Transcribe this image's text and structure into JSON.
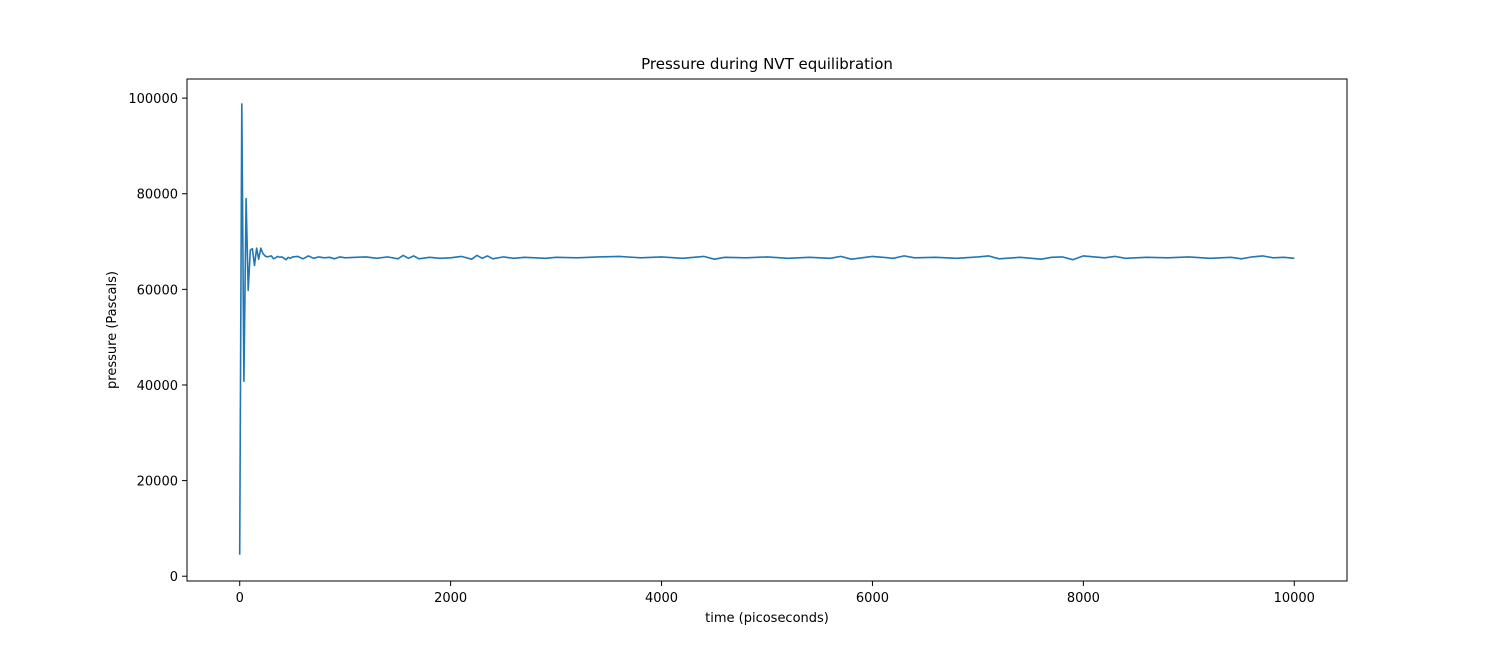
{
  "chart_data": {
    "type": "line",
    "title": "Pressure during NVT equilibration",
    "xlabel": "time (picoseconds)",
    "ylabel": "pressure (Pascals)",
    "xlim": [
      -500,
      10500
    ],
    "ylim": [
      -1000,
      104000
    ],
    "xticks": [
      0,
      2000,
      4000,
      6000,
      8000,
      10000
    ],
    "yticks": [
      0,
      20000,
      40000,
      60000,
      80000,
      100000
    ],
    "grid": false,
    "legend": "none",
    "line_color": "#1f77b4",
    "series": [
      {
        "x": [
          0,
          20,
          40,
          60,
          80,
          100,
          120,
          140,
          160,
          180,
          200,
          220,
          240,
          260,
          280,
          300,
          320,
          340,
          360,
          380,
          400,
          420,
          440,
          460,
          480,
          500,
          550,
          600,
          650,
          700,
          750,
          800,
          850,
          900,
          950,
          1000,
          1100,
          1200,
          1300,
          1400,
          1500,
          1550,
          1600,
          1650,
          1700,
          1800,
          1900,
          2000,
          2100,
          2200,
          2250,
          2300,
          2350,
          2400,
          2500,
          2600,
          2700,
          2800,
          2900,
          3000,
          3200,
          3400,
          3600,
          3800,
          4000,
          4200,
          4400,
          4500,
          4600,
          4800,
          5000,
          5200,
          5400,
          5600,
          5700,
          5800,
          6000,
          6200,
          6300,
          6400,
          6600,
          6800,
          7000,
          7100,
          7200,
          7400,
          7600,
          7700,
          7800,
          7900,
          8000,
          8200,
          8300,
          8400,
          8600,
          8800,
          9000,
          9200,
          9400,
          9500,
          9600,
          9700,
          9800,
          9900,
          10000
        ],
        "values": [
          4500,
          98800,
          40800,
          79000,
          59800,
          68200,
          68500,
          65000,
          68600,
          66300,
          68600,
          67500,
          67000,
          66800,
          66900,
          67000,
          66400,
          66600,
          66900,
          66700,
          66800,
          66500,
          66200,
          66700,
          66500,
          66800,
          66900,
          66400,
          67000,
          66500,
          66800,
          66600,
          66700,
          66400,
          66800,
          66600,
          66700,
          66800,
          66500,
          66800,
          66400,
          67100,
          66500,
          67000,
          66400,
          66700,
          66500,
          66600,
          66900,
          66300,
          67100,
          66500,
          67000,
          66400,
          66800,
          66500,
          66700,
          66600,
          66500,
          66700,
          66600,
          66800,
          66900,
          66600,
          66800,
          66500,
          66900,
          66300,
          66700,
          66600,
          66800,
          66500,
          66700,
          66500,
          66900,
          66300,
          66900,
          66500,
          67000,
          66600,
          66700,
          66500,
          66800,
          67000,
          66400,
          66700,
          66300,
          66700,
          66800,
          66200,
          67000,
          66600,
          66900,
          66500,
          66700,
          66600,
          66800,
          66500,
          66700,
          66400,
          66800,
          67000,
          66600,
          66700,
          66500
        ]
      }
    ]
  }
}
